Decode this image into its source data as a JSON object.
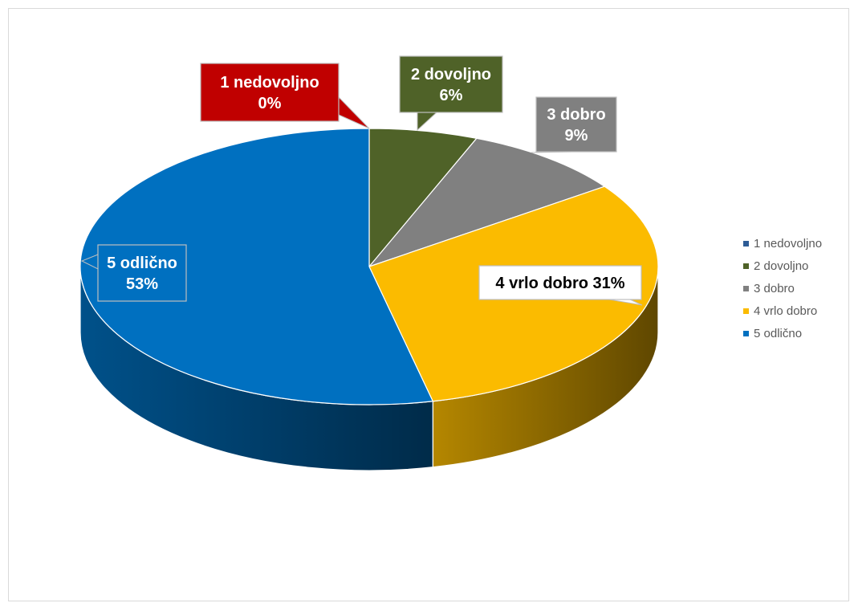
{
  "chart_data": {
    "type": "pie",
    "style": "3d",
    "categories": [
      "1 nedovoljno",
      "2 dovoljno",
      "3 dobro",
      "4 vrlo dobro",
      "5 odlično"
    ],
    "values": [
      0,
      6,
      9,
      31,
      53
    ],
    "unit": "%",
    "colors": [
      "#c00000",
      "#4f6228",
      "#808080",
      "#fbbb00",
      "#0070c0"
    ],
    "legend_colors": [
      "#2e5c96",
      "#4f6228",
      "#808080",
      "#fbbb00",
      "#0070c0"
    ],
    "legend_position": "right",
    "data_labels": [
      {
        "lines": [
          "1 nedovoljno",
          "0%"
        ],
        "fill": "#c00000",
        "text_color": "#ffffff"
      },
      {
        "lines": [
          "2 dovoljno",
          "6%"
        ],
        "fill": "#4f6228",
        "text_color": "#ffffff"
      },
      {
        "lines": [
          "3 dobro",
          "9%"
        ],
        "fill": "#808080",
        "text_color": "#ffffff"
      },
      {
        "lines": [
          "4 vrlo dobro  31%"
        ],
        "fill": "#ffffff",
        "text_color": "#000000"
      },
      {
        "lines": [
          "5 odlično",
          "53%"
        ],
        "fill": "#0070c0",
        "text_color": "#ffffff"
      }
    ]
  }
}
